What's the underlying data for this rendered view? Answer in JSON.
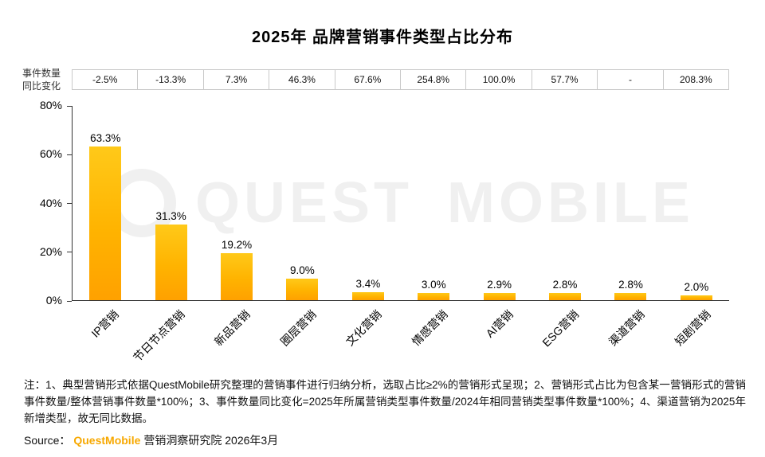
{
  "title": "2025年 品牌营销事件类型占比分布",
  "yoy_header": {
    "line1": "事件数量",
    "line2": "同比变化"
  },
  "chart_data": {
    "type": "bar",
    "title": "2025年 品牌营销事件类型占比分布",
    "categories": [
      "IP营销",
      "节日节点营销",
      "新品营销",
      "圈层营销",
      "文化营销",
      "情感营销",
      "AI营销",
      "ESG营销",
      "渠道营销",
      "短剧营销"
    ],
    "values": [
      63.3,
      31.3,
      19.2,
      9.0,
      3.4,
      3.0,
      2.9,
      2.8,
      2.8,
      2.0
    ],
    "value_labels": [
      "63.3%",
      "31.3%",
      "19.2%",
      "9.0%",
      "3.4%",
      "3.0%",
      "2.9%",
      "2.8%",
      "2.8%",
      "2.0%"
    ],
    "yoy_change": [
      "-2.5%",
      "-13.3%",
      "7.3%",
      "46.3%",
      "67.6%",
      "254.8%",
      "100.0%",
      "57.7%",
      "-",
      "208.3%"
    ],
    "ylabel": "",
    "xlabel": "",
    "ylim": [
      0,
      80
    ],
    "yticks": [
      "0%",
      "20%",
      "40%",
      "60%",
      "80%"
    ],
    "grid": false,
    "legend": false,
    "bar_color_top": "#FFC919",
    "bar_color_bottom": "#FFA100"
  },
  "watermark": "QUEST MOBILE",
  "notes": "注：1、典型营销形式依据QuestMobile研究整理的营销事件进行归纳分析，选取占比≥2%的营销形式呈现；2、营销形式占比为包含某一营销形式的营销事件数量/整体营销事件数量*100%；3、事件数量同比变化=2025年所属营销类型事件数量/2024年相同营销类型事件数量*100%；4、渠道营销为2025年新增类型，故无同比数据。",
  "source": {
    "prefix": "Source：",
    "brand": "QuestMobile",
    "suffix": "营销洞察研究院 2026年3月"
  }
}
